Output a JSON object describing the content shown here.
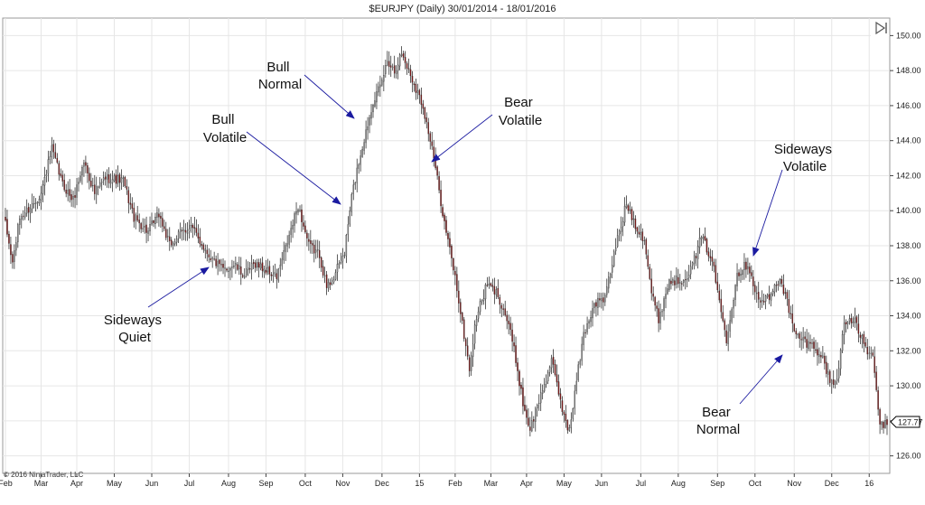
{
  "chart_data": {
    "type": "candlestick",
    "title": "$EURJPY (Daily)  30/01/2014 - 18/01/2016",
    "copyright": "© 2016 NinjaTrader, LLC",
    "last_price_label": "127.77",
    "ylim": [
      125,
      151
    ],
    "y_ticks": [
      "126.00",
      "128.00",
      "130.00",
      "132.00",
      "134.00",
      "136.00",
      "138.00",
      "140.00",
      "142.00",
      "144.00",
      "146.00",
      "148.00",
      "150.00"
    ],
    "y_tick_values": [
      126,
      128,
      130,
      132,
      134,
      136,
      138,
      140,
      142,
      144,
      146,
      148,
      150
    ],
    "x_ticks": [
      "Feb",
      "Mar",
      "Apr",
      "May",
      "Jun",
      "Jul",
      "Aug",
      "Sep",
      "Oct",
      "Nov",
      "Dec",
      "15",
      "Feb",
      "Mar",
      "Apr",
      "May",
      "Jun",
      "Jul",
      "Aug",
      "Sep",
      "Oct",
      "Nov",
      "Dec",
      "16"
    ],
    "x_tick_index": [
      0,
      20,
      40,
      61,
      82,
      103,
      125,
      146,
      168,
      189,
      211,
      232,
      252,
      272,
      292,
      313,
      334,
      356,
      377,
      399,
      420,
      442,
      463,
      484
    ],
    "total_bars": 495,
    "series_anchors": [
      [
        0,
        139.2
      ],
      [
        4,
        137.0
      ],
      [
        8,
        139.6
      ],
      [
        14,
        140.2
      ],
      [
        20,
        141.0
      ],
      [
        26,
        143.5
      ],
      [
        32,
        141.5
      ],
      [
        38,
        140.6
      ],
      [
        44,
        142.8
      ],
      [
        50,
        141.0
      ],
      [
        56,
        141.9
      ],
      [
        66,
        141.7
      ],
      [
        72,
        139.6
      ],
      [
        80,
        138.8
      ],
      [
        86,
        139.8
      ],
      [
        92,
        138.0
      ],
      [
        98,
        138.7
      ],
      [
        104,
        139.1
      ],
      [
        110,
        138.1
      ],
      [
        116,
        137.2
      ],
      [
        122,
        136.6
      ],
      [
        128,
        136.9
      ],
      [
        134,
        136.3
      ],
      [
        140,
        137.0
      ],
      [
        146,
        136.6
      ],
      [
        152,
        136.2
      ],
      [
        158,
        138.2
      ],
      [
        164,
        140.3
      ],
      [
        170,
        138.0
      ],
      [
        176,
        137.5
      ],
      [
        180,
        135.6
      ],
      [
        184,
        136.2
      ],
      [
        190,
        137.6
      ],
      [
        194,
        140.8
      ],
      [
        198,
        142.8
      ],
      [
        202,
        144.5
      ],
      [
        206,
        146.3
      ],
      [
        210,
        147.0
      ],
      [
        214,
        148.6
      ],
      [
        218,
        148.0
      ],
      [
        222,
        149.0
      ],
      [
        228,
        147.5
      ],
      [
        234,
        146.0
      ],
      [
        240,
        143.0
      ],
      [
        246,
        139.3
      ],
      [
        252,
        136.2
      ],
      [
        256,
        133.5
      ],
      [
        260,
        131.0
      ],
      [
        264,
        134.0
      ],
      [
        270,
        135.8
      ],
      [
        276,
        135.2
      ],
      [
        282,
        133.5
      ],
      [
        286,
        131.5
      ],
      [
        290,
        129.0
      ],
      [
        294,
        127.5
      ],
      [
        300,
        129.5
      ],
      [
        306,
        131.4
      ],
      [
        312,
        128.7
      ],
      [
        316,
        127.4
      ],
      [
        320,
        130.3
      ],
      [
        324,
        132.9
      ],
      [
        330,
        134.7
      ],
      [
        336,
        135.0
      ],
      [
        342,
        138.0
      ],
      [
        348,
        140.4
      ],
      [
        354,
        139.0
      ],
      [
        358,
        138.4
      ],
      [
        362,
        135.3
      ],
      [
        366,
        133.8
      ],
      [
        372,
        136.0
      ],
      [
        378,
        136.0
      ],
      [
        384,
        136.6
      ],
      [
        390,
        138.5
      ],
      [
        396,
        137.2
      ],
      [
        400,
        134.8
      ],
      [
        404,
        132.7
      ],
      [
        410,
        136.4
      ],
      [
        416,
        137.0
      ],
      [
        422,
        134.8
      ],
      [
        428,
        135.0
      ],
      [
        434,
        136.2
      ],
      [
        438,
        134.8
      ],
      [
        442,
        133.0
      ],
      [
        448,
        132.5
      ],
      [
        454,
        132.2
      ],
      [
        458,
        131.5
      ],
      [
        462,
        130.3
      ],
      [
        466,
        130.2
      ],
      [
        470,
        133.8
      ],
      [
        476,
        133.6
      ],
      [
        482,
        132.2
      ],
      [
        486,
        131.5
      ],
      [
        490,
        127.8
      ],
      [
        494,
        127.77
      ]
    ]
  },
  "annotations": [
    {
      "id": "sideways-quiet",
      "lines": [
        "Sideways",
        "Quiet"
      ]
    },
    {
      "id": "bull-volatile",
      "lines": [
        "Bull",
        "Volatile"
      ]
    },
    {
      "id": "bull-normal",
      "lines": [
        "Bull",
        "Normal"
      ]
    },
    {
      "id": "bear-volatile",
      "lines": [
        "Bear",
        "Volatile"
      ]
    },
    {
      "id": "sideways-volatile",
      "lines": [
        "Sideways",
        "Volatile"
      ]
    },
    {
      "id": "bear-normal",
      "lines": [
        "Bear",
        "Normal"
      ]
    }
  ],
  "colors": {
    "up": "#8a8a8a",
    "down": "#7a1616",
    "wick": "#1a1a1a",
    "arrow": "#1a1aa0",
    "grid": "#e6e6e6",
    "axis": "#444444"
  }
}
